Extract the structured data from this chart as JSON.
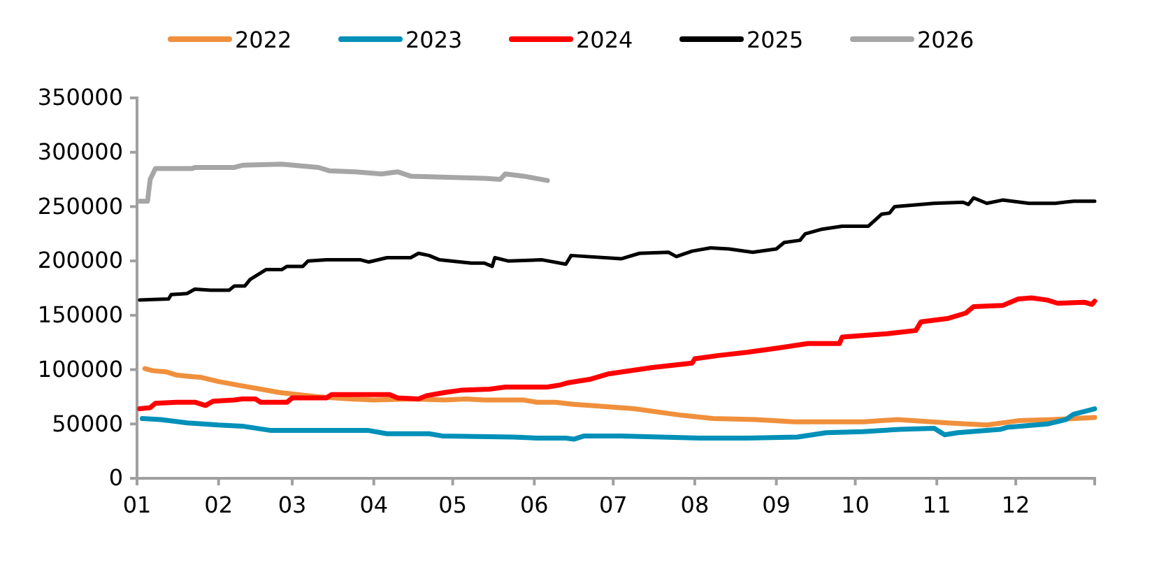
{
  "chart_data": {
    "type": "line",
    "legend": "top",
    "grid": false,
    "line_style": "solid",
    "marker": "none",
    "xlim": [
      "--01-01",
      "--12-31"
    ],
    "xticks": [
      {
        "value": "--01-01",
        "label": "01"
      },
      {
        "value": "--02-01",
        "label": "02"
      },
      {
        "value": "--03-01",
        "label": "03"
      },
      {
        "value": "--04-01",
        "label": "04"
      },
      {
        "value": "--05-01",
        "label": "05"
      },
      {
        "value": "--06-01",
        "label": "06"
      },
      {
        "value": "--07-01",
        "label": "07"
      },
      {
        "value": "--08-01",
        "label": "08"
      },
      {
        "value": "--09-01",
        "label": "09"
      },
      {
        "value": "--10-01",
        "label": "10"
      },
      {
        "value": "--11-01",
        "label": "11"
      },
      {
        "value": "--12-01",
        "label": "12"
      },
      {
        "value": "--12-31",
        "label": null
      }
    ],
    "ylim": [
      0,
      350000
    ],
    "yticks": [
      0,
      50000,
      100000,
      150000,
      200000,
      250000,
      300000,
      350000
    ],
    "series": [
      {
        "name": "2022",
        "color": "#f0903c",
        "x": [
          "--01-04",
          "--01-07",
          "--01-12",
          "--01-16",
          "--01-20",
          "--01-25",
          "--02-01",
          "--02-10",
          "--02-17",
          "--02-24",
          "--03-03",
          "--03-11",
          "--03-23",
          "--04-01",
          "--04-15",
          "--04-28",
          "--05-06",
          "--05-13",
          "--05-28",
          "--06-02",
          "--06-09",
          "--06-16",
          "--06-22",
          "--07-09",
          "--07-27",
          "--08-08",
          "--08-24",
          "--09-08",
          "--10-04",
          "--10-17",
          "--11-05",
          "--11-20",
          "--12-02",
          "--12-15",
          "--12-31"
        ],
        "values": [
          101000,
          99000,
          98000,
          95000,
          94000,
          93000,
          89000,
          85000,
          82000,
          79000,
          77000,
          75000,
          73000,
          72000,
          73000,
          72000,
          73000,
          72000,
          72000,
          70000,
          70000,
          68000,
          67000,
          64000,
          58000,
          55000,
          54000,
          52000,
          52000,
          54000,
          51000,
          49000,
          53000,
          54000,
          56000
        ]
      },
      {
        "name": "2023",
        "color": "#0090b8",
        "x": [
          "--01-03",
          "--01-10",
          "--01-20",
          "--02-01",
          "--02-10",
          "--02-21",
          "--03-09",
          "--03-30",
          "--04-06",
          "--04-22",
          "--04-27",
          "--05-24",
          "--06-02",
          "--06-13",
          "--06-16",
          "--06-20",
          "--07-04",
          "--08-03",
          "--08-21",
          "--09-09",
          "--09-20",
          "--10-04",
          "--10-18",
          "--10-31",
          "--11-04",
          "--11-09",
          "--11-25",
          "--11-28",
          "--12-13",
          "--12-20",
          "--12-23",
          "--12-31"
        ],
        "values": [
          55000,
          54000,
          51000,
          49000,
          48000,
          44000,
          44000,
          44000,
          41000,
          41000,
          39000,
          38000,
          37000,
          37000,
          36000,
          39000,
          39000,
          37000,
          37000,
          38000,
          42000,
          43000,
          45000,
          46000,
          40000,
          42000,
          45000,
          47000,
          50000,
          54000,
          59000,
          64000
        ]
      },
      {
        "name": "2024",
        "color": "#ff0000",
        "x": [
          "--01-02",
          "--01-06",
          "--01-08",
          "--01-16",
          "--01-23",
          "--01-27",
          "--01-30",
          "--02-07",
          "--02-10",
          "--02-15",
          "--02-17",
          "--02-27",
          "--03-01",
          "--03-14",
          "--03-16",
          "--04-07",
          "--04-10",
          "--04-18",
          "--04-21",
          "--04-28",
          "--05-04",
          "--05-15",
          "--05-21",
          "--06-06",
          "--06-11",
          "--06-14",
          "--06-22",
          "--06-29",
          "--07-16",
          "--07-31",
          "--08-01",
          "--08-10",
          "--08-21",
          "--09-02",
          "--09-13",
          "--09-25",
          "--09-26",
          "--10-13",
          "--10-24",
          "--10-26",
          "--11-05",
          "--11-12",
          "--11-15",
          "--11-26",
          "--12-02",
          "--12-07",
          "--12-13",
          "--12-17",
          "--12-27",
          "--12-30",
          "--12-31"
        ],
        "values": [
          64000,
          65000,
          69000,
          70000,
          70000,
          67000,
          71000,
          72000,
          73000,
          73000,
          70000,
          70000,
          74000,
          74000,
          77000,
          77000,
          74000,
          73000,
          76000,
          79000,
          81000,
          82000,
          84000,
          84000,
          86000,
          88000,
          91000,
          96000,
          102000,
          106000,
          110000,
          113000,
          116000,
          120000,
          124000,
          124000,
          130000,
          133000,
          136000,
          144000,
          147000,
          152000,
          158000,
          159000,
          165000,
          166000,
          164000,
          161000,
          162000,
          160000,
          163000
        ]
      },
      {
        "name": "2025",
        "color": "#000000",
        "x": [
          "--01-02",
          "--01-13",
          "--01-14",
          "--01-20",
          "--01-23",
          "--01-29",
          "--02-05",
          "--02-07",
          "--02-11",
          "--02-13",
          "--02-19",
          "--02-25",
          "--02-27",
          "--03-05",
          "--03-07",
          "--03-14",
          "--03-27",
          "--03-30",
          "--04-06",
          "--04-15",
          "--04-18",
          "--04-22",
          "--04-26",
          "--05-08",
          "--05-13",
          "--05-16",
          "--05-17",
          "--05-22",
          "--06-04",
          "--06-13",
          "--06-15",
          "--07-04",
          "--07-11",
          "--07-22",
          "--07-25",
          "--07-31",
          "--08-07",
          "--08-14",
          "--08-23",
          "--09-01",
          "--09-04",
          "--09-10",
          "--09-12",
          "--09-18",
          "--09-26",
          "--10-06",
          "--10-11",
          "--10-14",
          "--10-16",
          "--10-31",
          "--11-11",
          "--11-13",
          "--11-15",
          "--11-20",
          "--11-26",
          "--12-06",
          "--12-16",
          "--12-23",
          "--12-31"
        ],
        "values": [
          164000,
          165000,
          169000,
          170000,
          174000,
          173000,
          173000,
          177000,
          177000,
          183000,
          192000,
          192000,
          195000,
          195000,
          200000,
          201000,
          201000,
          199000,
          203000,
          203000,
          207000,
          205000,
          201000,
          198000,
          198000,
          195000,
          203000,
          200000,
          201000,
          197000,
          205000,
          202000,
          207000,
          208000,
          204000,
          209000,
          212000,
          211000,
          208000,
          211000,
          217000,
          219000,
          225000,
          229000,
          232000,
          232000,
          243000,
          244000,
          250000,
          253000,
          254000,
          252000,
          258000,
          253000,
          256000,
          253000,
          253000,
          255000,
          255000
        ]
      },
      {
        "name": "2026",
        "color": "#a6a6a6",
        "x": [
          "--01-02",
          "--01-05",
          "--01-06",
          "--01-08",
          "--01-22",
          "--01-23",
          "--02-07",
          "--02-10",
          "--02-25",
          "--03-11",
          "--03-15",
          "--03-25",
          "--04-04",
          "--04-10",
          "--04-15",
          "--04-29",
          "--05-13",
          "--05-19",
          "--05-21",
          "--05-28",
          "--06-06"
        ],
        "values": [
          255000,
          255000,
          275000,
          285000,
          285000,
          286000,
          286000,
          288000,
          289000,
          286000,
          283000,
          282000,
          280000,
          282000,
          278000,
          277000,
          276000,
          275000,
          280000,
          278000,
          274000
        ]
      }
    ]
  }
}
